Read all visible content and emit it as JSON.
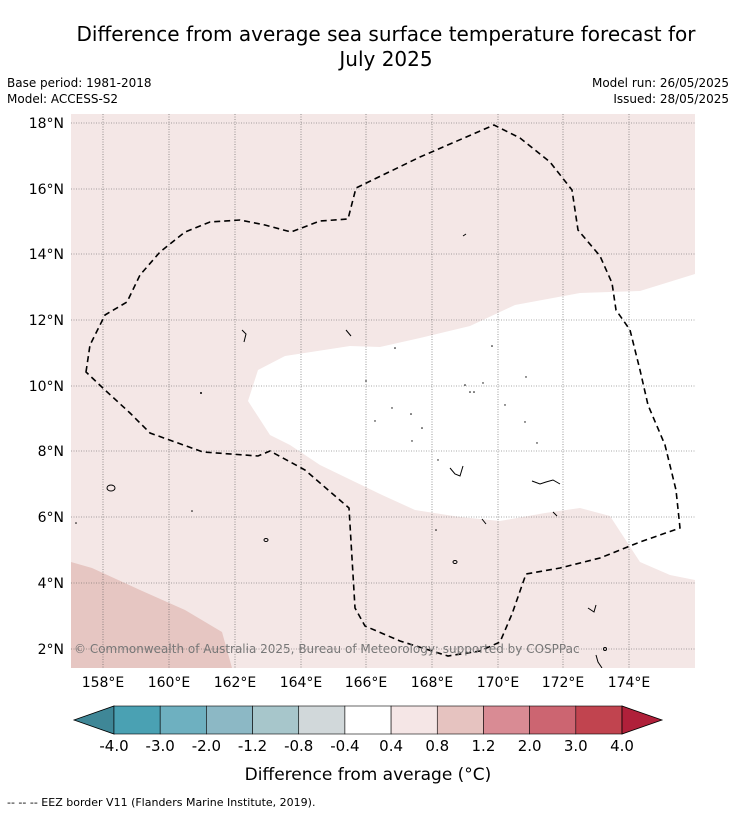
{
  "title_line1": "Difference from average sea surface temperature forecast for",
  "title_line2": "July 2025",
  "base_period": "Base period: 1981-2018",
  "model": "Model: ACCESS-S2",
  "model_run": "Model run: 26/05/2025",
  "issued": "Issued: 28/05/2025",
  "copyright": "© Commonwealth of Australia 2025, Bureau of Meteorology; supported by COSPPac",
  "lat_labels": [
    "18°N",
    "16°N",
    "14°N",
    "12°N",
    "10°N",
    "8°N",
    "6°N",
    "4°N",
    "2°N"
  ],
  "lon_labels": [
    "158°E",
    "160°E",
    "162°E",
    "164°E",
    "166°E",
    "168°E",
    "170°E",
    "172°E",
    "174°E"
  ],
  "colorbar": {
    "ticks": [
      "-4.0",
      "-3.0",
      "-2.0",
      "-1.2",
      "-0.8",
      "-0.4",
      "0.4",
      "0.8",
      "1.2",
      "2.0",
      "3.0",
      "4.0"
    ],
    "colors": [
      "#3f8797",
      "#4aa1b3",
      "#6eb0c0",
      "#8cb8c5",
      "#a7c6cb",
      "#d1d8da",
      "#ffffff",
      "#f5e6e6",
      "#e6c3c0",
      "#d98b94",
      "#cc6571",
      "#c1444f",
      "#b0203a"
    ],
    "label": "Difference from average (°C)"
  },
  "map_colors": {
    "band_0.4_0.8": "#f4e7e6",
    "band_0.8_1.2": "#e6c6c2",
    "neutral": "#ffffff"
  },
  "footnote": "-- -- -- EEZ border V11 (Flanders Marine Institute, 2019)."
}
